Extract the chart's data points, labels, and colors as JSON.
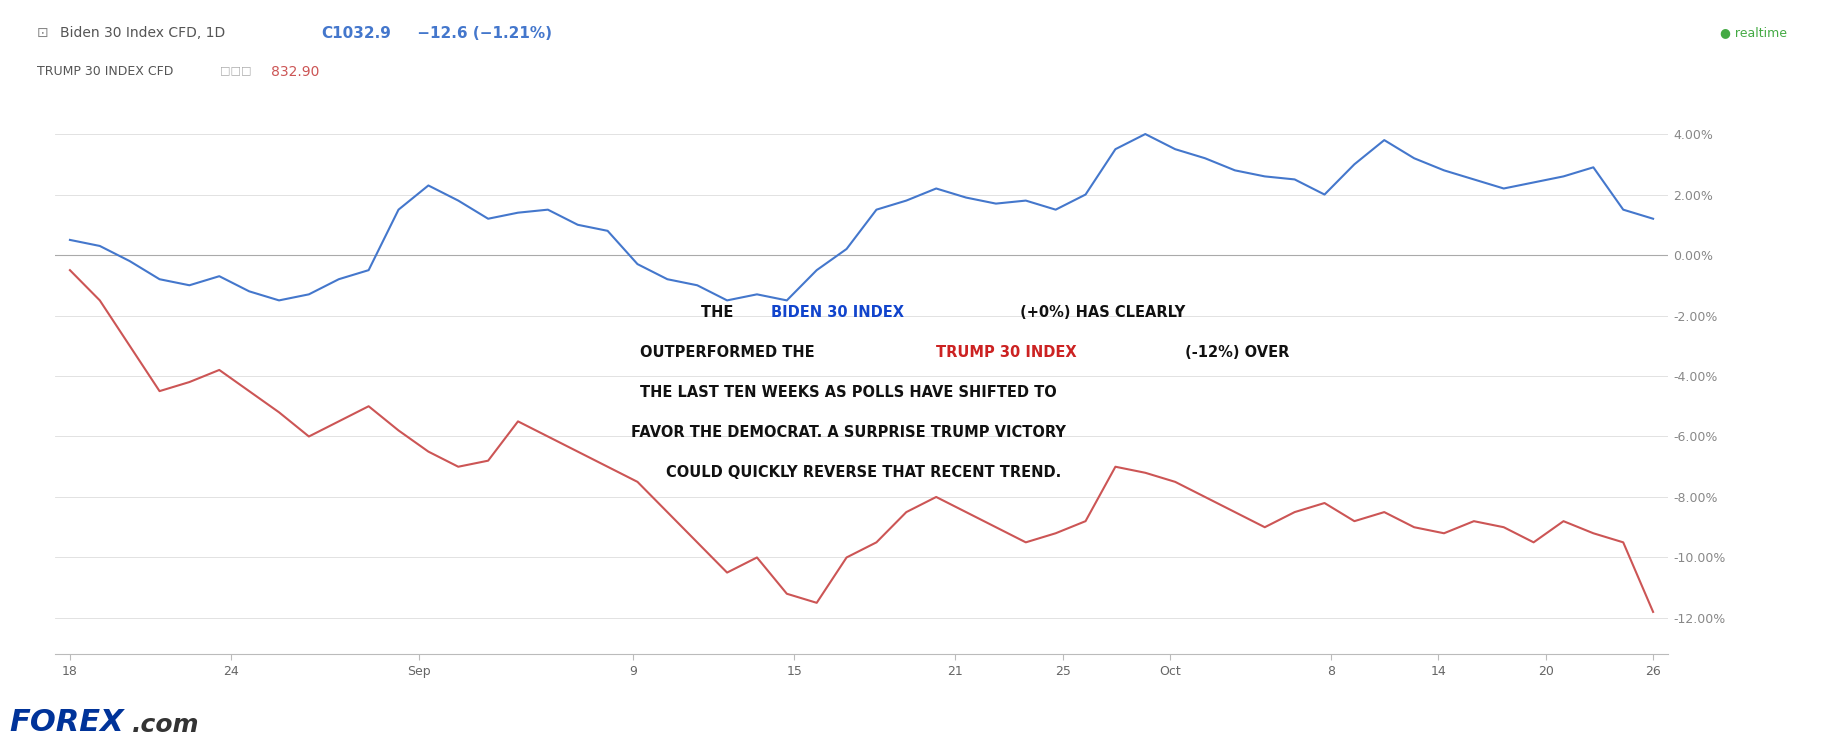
{
  "background_color": "#ffffff",
  "biden_color": "#4477cc",
  "trump_color": "#cc5555",
  "annotation_biden_color": "#1144cc",
  "annotation_trump_color": "#cc2222",
  "annotation_dark_color": "#111111",
  "yticks": [
    4.0,
    2.0,
    0.0,
    -2.0,
    -4.0,
    -6.0,
    -8.0,
    -10.0,
    -12.0
  ],
  "ylim": [
    -13.2,
    5.2
  ],
  "grid_color": "#dddddd",
  "zero_line_color": "#aaaaaa",
  "biden_data": [
    0.5,
    0.3,
    -0.2,
    -0.8,
    -1.0,
    -0.7,
    -1.2,
    -1.5,
    -1.3,
    -0.8,
    -0.5,
    1.5,
    2.3,
    1.8,
    1.2,
    1.4,
    1.5,
    1.0,
    0.8,
    -0.3,
    -0.8,
    -1.0,
    -1.5,
    -1.3,
    -1.5,
    -0.5,
    0.2,
    1.5,
    1.8,
    2.2,
    1.9,
    1.7,
    1.8,
    1.5,
    2.0,
    3.5,
    4.0,
    3.5,
    3.2,
    2.8,
    2.6,
    2.5,
    2.0,
    3.0,
    3.8,
    3.2,
    2.8,
    2.5,
    2.2,
    2.4,
    2.6,
    2.9,
    1.5,
    1.2
  ],
  "trump_data": [
    -0.5,
    -1.5,
    -3.0,
    -4.5,
    -4.2,
    -3.8,
    -4.5,
    -5.2,
    -6.0,
    -5.5,
    -5.0,
    -5.8,
    -6.5,
    -7.0,
    -6.8,
    -5.5,
    -6.0,
    -6.5,
    -7.0,
    -7.5,
    -8.5,
    -9.5,
    -10.5,
    -10.0,
    -11.2,
    -11.5,
    -10.0,
    -9.5,
    -8.5,
    -8.0,
    -8.5,
    -9.0,
    -9.5,
    -9.2,
    -8.8,
    -7.0,
    -7.2,
    -7.5,
    -8.0,
    -8.5,
    -9.0,
    -8.5,
    -8.2,
    -8.8,
    -8.5,
    -9.0,
    -9.2,
    -8.8,
    -9.0,
    -9.5,
    -8.8,
    -9.2,
    -9.5,
    -11.8
  ],
  "xtick_labels": [
    "18",
    "24",
    "Sep",
    "9",
    "15",
    "21",
    "25",
    "Oct",
    "8",
    "14",
    "20",
    "26"
  ],
  "xtick_positions": [
    0,
    6,
    13,
    21,
    27,
    33,
    37,
    41,
    47,
    51,
    55,
    59
  ]
}
